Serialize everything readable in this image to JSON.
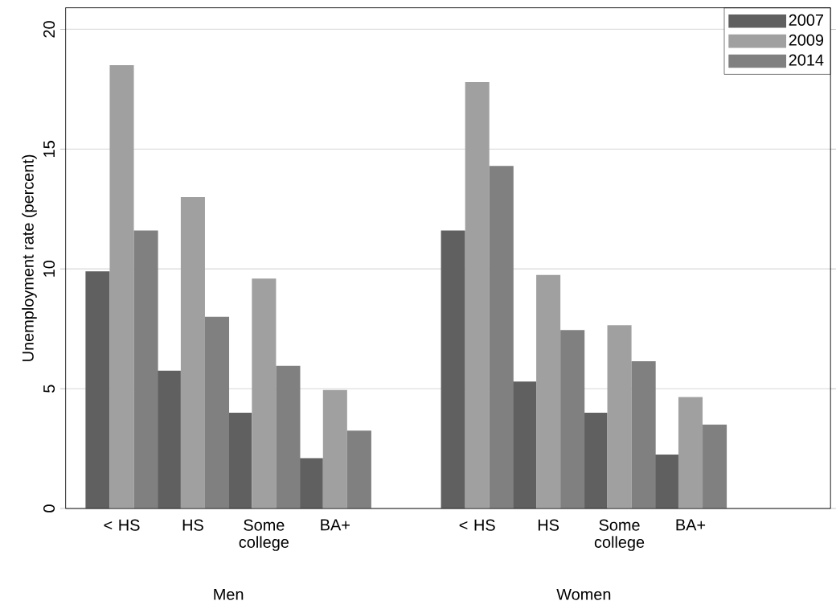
{
  "chart_data": {
    "type": "bar",
    "ylabel": "Unemployment rate (percent)",
    "categories": [
      "< HS",
      "HS",
      "Some college",
      "BA+",
      null,
      "< HS",
      "HS",
      "Some college",
      "BA+"
    ],
    "series": [
      {
        "name": "2007",
        "color": "#606060",
        "values": [
          9.9,
          5.75,
          4.0,
          2.1,
          null,
          11.6,
          5.3,
          4.0,
          2.25
        ]
      },
      {
        "name": "2009",
        "color": "#a0a0a0",
        "values": [
          18.5,
          13.0,
          9.6,
          4.95,
          null,
          17.8,
          9.75,
          7.65,
          4.65
        ]
      },
      {
        "name": "2014",
        "color": "#808080",
        "values": [
          11.6,
          8.0,
          5.95,
          3.25,
          null,
          14.3,
          7.45,
          6.15,
          3.5
        ]
      }
    ],
    "ylim": [
      0,
      20.9
    ],
    "yticks": [
      0,
      5,
      10,
      15,
      20
    ],
    "grid": "y",
    "legend": "top right",
    "annotations": [
      "Men",
      "Women"
    ]
  }
}
